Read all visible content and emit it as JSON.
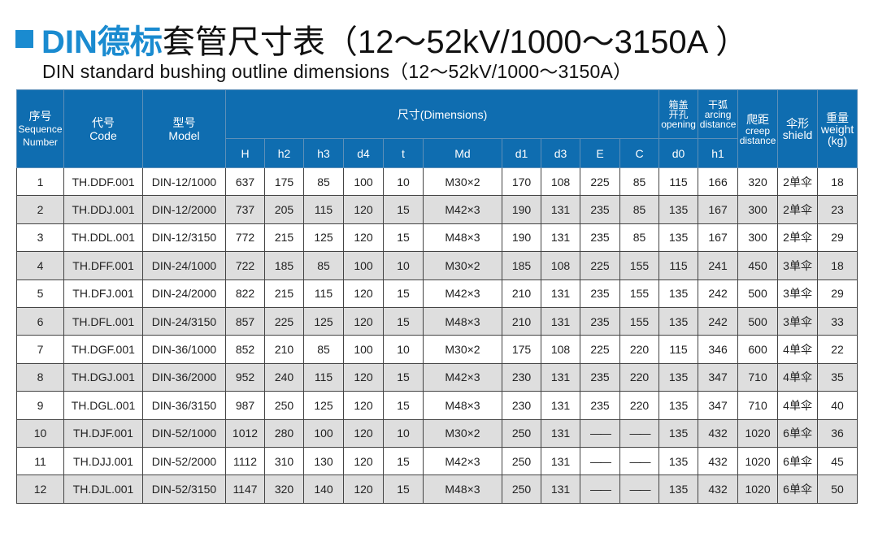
{
  "title": {
    "blue": "DIN德标",
    "black": "套管尺寸表（12～52kV/1000～3150A ）"
  },
  "subtitle": "DIN standard bushing outline dimensions（12～52kV/1000～3150A）",
  "colors": {
    "accent": "#1a8bd0",
    "header_bg": "#0f6db0",
    "alt_row": "#dedede"
  },
  "headers": {
    "seq": {
      "cn": "序号",
      "en1": "Sequence",
      "en2": "Number"
    },
    "code": {
      "cn": "代号",
      "en": "Code"
    },
    "model": {
      "cn": "型号",
      "en": "Model"
    },
    "dimensions": "尺寸(Dimensions)",
    "opening": {
      "cn1": "箱盖",
      "cn2": "开孔",
      "en": "opening"
    },
    "arcing": {
      "cn": "干弧",
      "en1": "arcing",
      "en2": "distance"
    },
    "creep": {
      "cn": "爬距",
      "en1": "creep",
      "en2": "distance"
    },
    "shield": {
      "cn": "伞形",
      "en": "shield"
    },
    "weight": {
      "cn": "重量",
      "en": "weight",
      "unit": "(kg)"
    },
    "sub": [
      "H",
      "h2",
      "h3",
      "d4",
      "t",
      "Md",
      "d1",
      "d3",
      "E",
      "C",
      "d0",
      "h1"
    ]
  },
  "rows": [
    [
      "1",
      "TH.DDF.001",
      "DIN-12/1000",
      "637",
      "175",
      "85",
      "100",
      "10",
      "M30×2",
      "170",
      "108",
      "225",
      "85",
      "115",
      "166",
      "320",
      "2单伞",
      "18"
    ],
    [
      "2",
      "TH.DDJ.001",
      "DIN-12/2000",
      "737",
      "205",
      "115",
      "120",
      "15",
      "M42×3",
      "190",
      "131",
      "235",
      "85",
      "135",
      "167",
      "300",
      "2单伞",
      "23"
    ],
    [
      "3",
      "TH.DDL.001",
      "DIN-12/3150",
      "772",
      "215",
      "125",
      "120",
      "15",
      "M48×3",
      "190",
      "131",
      "235",
      "85",
      "135",
      "167",
      "300",
      "2单伞",
      "29"
    ],
    [
      "4",
      "TH.DFF.001",
      "DIN-24/1000",
      "722",
      "185",
      "85",
      "100",
      "10",
      "M30×2",
      "185",
      "108",
      "225",
      "155",
      "115",
      "241",
      "450",
      "3单伞",
      "18"
    ],
    [
      "5",
      "TH.DFJ.001",
      "DIN-24/2000",
      "822",
      "215",
      "115",
      "120",
      "15",
      "M42×3",
      "210",
      "131",
      "235",
      "155",
      "135",
      "242",
      "500",
      "3单伞",
      "29"
    ],
    [
      "6",
      "TH.DFL.001",
      "DIN-24/3150",
      "857",
      "225",
      "125",
      "120",
      "15",
      "M48×3",
      "210",
      "131",
      "235",
      "155",
      "135",
      "242",
      "500",
      "3单伞",
      "33"
    ],
    [
      "7",
      "TH.DGF.001",
      "DIN-36/1000",
      "852",
      "210",
      "85",
      "100",
      "10",
      "M30×2",
      "175",
      "108",
      "225",
      "220",
      "115",
      "346",
      "600",
      "4单伞",
      "22"
    ],
    [
      "8",
      "TH.DGJ.001",
      "DIN-36/2000",
      "952",
      "240",
      "115",
      "120",
      "15",
      "M42×3",
      "230",
      "131",
      "235",
      "220",
      "135",
      "347",
      "710",
      "4单伞",
      "35"
    ],
    [
      "9",
      "TH.DGL.001",
      "DIN-36/3150",
      "987",
      "250",
      "125",
      "120",
      "15",
      "M48×3",
      "230",
      "131",
      "235",
      "220",
      "135",
      "347",
      "710",
      "4单伞",
      "40"
    ],
    [
      "10",
      "TH.DJF.001",
      "DIN-52/1000",
      "1012",
      "280",
      "100",
      "120",
      "10",
      "M30×2",
      "250",
      "131",
      "——",
      "——",
      "135",
      "432",
      "1020",
      "6单伞",
      "36"
    ],
    [
      "11",
      "TH.DJJ.001",
      "DIN-52/2000",
      "1112",
      "310",
      "130",
      "120",
      "15",
      "M42×3",
      "250",
      "131",
      "——",
      "——",
      "135",
      "432",
      "1020",
      "6单伞",
      "45"
    ],
    [
      "12",
      "TH.DJL.001",
      "DIN-52/3150",
      "1147",
      "320",
      "140",
      "120",
      "15",
      "M48×3",
      "250",
      "131",
      "——",
      "——",
      "135",
      "432",
      "1020",
      "6单伞",
      "50"
    ]
  ]
}
